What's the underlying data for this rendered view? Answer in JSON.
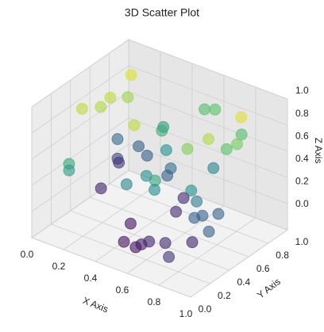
{
  "chart_data": {
    "type": "scatter3d",
    "title": "3D Scatter Plot",
    "x_label": "X Axis",
    "y_label": "Y Axis",
    "z_label": "Z Axis",
    "colormap": "viridis",
    "alpha": 0.6,
    "grid": true,
    "xlim": [
      0,
      1
    ],
    "ylim": [
      0,
      1
    ],
    "zlim": [
      0,
      1
    ],
    "xticks": [
      {
        "value": 0,
        "label": "0.0"
      },
      0.2,
      0.4,
      0.6,
      0.8,
      {
        "value": 1,
        "label": "1.0"
      }
    ],
    "yticks": [
      {
        "value": 0,
        "label": "0.0"
      },
      0.2,
      0.4,
      0.6,
      0.8,
      {
        "value": 1,
        "label": "1.0"
      }
    ],
    "zticks": [
      {
        "value": 0,
        "label": "0.0"
      },
      0.2,
      0.4,
      0.6,
      0.8,
      {
        "value": 1,
        "label": "1.0"
      }
    ],
    "x": [
      0.18,
      0.14,
      0.19,
      0.19,
      0.22,
      0.45,
      0.31,
      0.38,
      0.49,
      0.55,
      0.88,
      0.79,
      0.89,
      0.83,
      0.82,
      0.73,
      0.04,
      0.13,
      0.22,
      0.04,
      0.03,
      0.42,
      0.18,
      0.18,
      0.43,
      0.42,
      0.49,
      0.63,
      0.42,
      0.59,
      0.68,
      0.76,
      0.07,
      0.48,
      0.77,
      0.53,
      0.78,
      0.8,
      0.87,
      0.92,
      0.36,
      0.44,
      0.52,
      0.55,
      0.58,
      0.67,
      0.76,
      0.79
    ],
    "y": [
      0.73,
      0.29,
      0.4,
      0.5,
      0.63,
      0.32,
      0.85,
      0.72,
      0.98,
      0.99,
      0.72,
      0.87,
      0.66,
      0.65,
      0.48,
      0.41,
      0.82,
      0.89,
      0.83,
      0.82,
      0.85,
      0.7,
      0.09,
      0.09,
      0.73,
      0.71,
      0.38,
      0.24,
      0.29,
      0.3,
      0.76,
      0.4,
      0.6,
      0.78,
      0.44,
      0.62,
      0.4,
      0.45,
      0.5,
      0.32,
      0.43,
      0.23,
      0.22,
      0.23,
      0.26,
      0.28,
      0.41,
      0.12
    ],
    "z": [
      0.95,
      0.9,
      0.88,
      0.9,
      0.85,
      0.9,
      0.55,
      0.62,
      0.7,
      0.72,
      0.95,
      0.7,
      0.78,
      0.72,
      0.88,
      0.8,
      0.35,
      0.3,
      0.3,
      0.2,
      0.15,
      0.5,
      0.6,
      0.55,
      0.35,
      0.3,
      0.5,
      0.6,
      0.45,
      0.48,
      0.45,
      0.5,
      0.1,
      0.12,
      0.4,
      0.12,
      0.3,
      0.3,
      0.32,
      0.3,
      0.05,
      0.05,
      0.05,
      0.08,
      0.1,
      0.12,
      0.1,
      0.15
    ]
  }
}
